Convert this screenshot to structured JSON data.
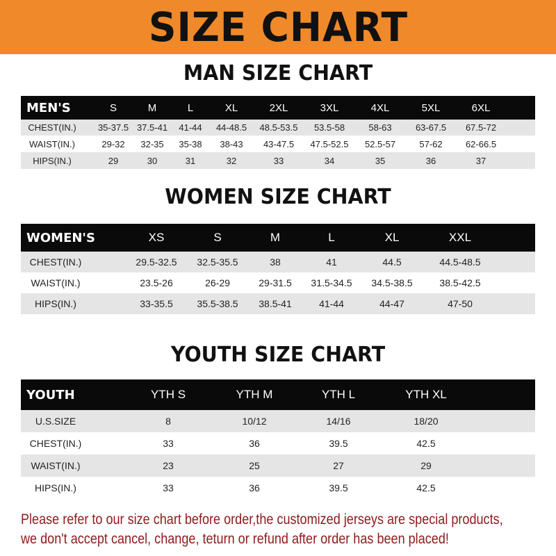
{
  "banner": {
    "title": "SIZE CHART",
    "color": "#f0892a"
  },
  "men": {
    "title": "MAN SIZE CHART",
    "header": [
      "MEN'S",
      "S",
      "M",
      "L",
      "XL",
      "2XL",
      "3XL",
      "4XL",
      "5XL",
      "6XL"
    ],
    "rows": [
      [
        "CHEST(IN.)",
        "35-37.5",
        "37.5-41",
        "41-44",
        "44-48.5",
        "48.5-53.5",
        "53.5-58",
        "58-63",
        "63-67.5",
        "67.5-72"
      ],
      [
        "WAIST(IN.)",
        "29-32",
        "32-35",
        "35-38",
        "38-43",
        "43-47.5",
        "47.5-52.5",
        "52.5-57",
        "57-62",
        "62-66.5"
      ],
      [
        "HIPS(IN.)",
        "29",
        "30",
        "31",
        "32",
        "33",
        "34",
        "35",
        "36",
        "37"
      ]
    ]
  },
  "women": {
    "title": "WOMEN SIZE CHART",
    "header": [
      "WOMEN'S",
      "XS",
      "S",
      "M",
      "L",
      "XL",
      "XXL"
    ],
    "rows": [
      [
        "CHEST(IN.)",
        "29.5-32.5",
        "32.5-35.5",
        "38",
        "41",
        "44.5",
        "44.5-48.5"
      ],
      [
        "WAIST(IN.)",
        "23.5-26",
        "26-29",
        "29-31.5",
        "31.5-34.5",
        "34.5-38.5",
        "38.5-42.5"
      ],
      [
        "HIPS(IN.)",
        "33-35.5",
        "35.5-38.5",
        "38.5-41",
        "41-44",
        "44-47",
        "47-50"
      ]
    ]
  },
  "youth": {
    "title": "YOUTH SIZE CHART",
    "header": [
      "YOUTH",
      "YTH S",
      "YTH M",
      "YTH L",
      "YTH XL"
    ],
    "rows": [
      [
        "U.S.SIZE",
        "8",
        "10/12",
        "14/16",
        "18/20"
      ],
      [
        "CHEST(IN.)",
        "33",
        "36",
        "39.5",
        "42.5"
      ],
      [
        "WAIST(IN.)",
        "23",
        "25",
        "27",
        "29"
      ],
      [
        "HIPS(IN.)",
        "33",
        "36",
        "39.5",
        "42.5"
      ]
    ]
  },
  "notice": {
    "line1": "Please refer to our size chart before order,the customized jerseys are special products,",
    "line2": "we don't accept cancel, change, teturn or refund after order has been placed!",
    "color": "#8e1b1b"
  }
}
